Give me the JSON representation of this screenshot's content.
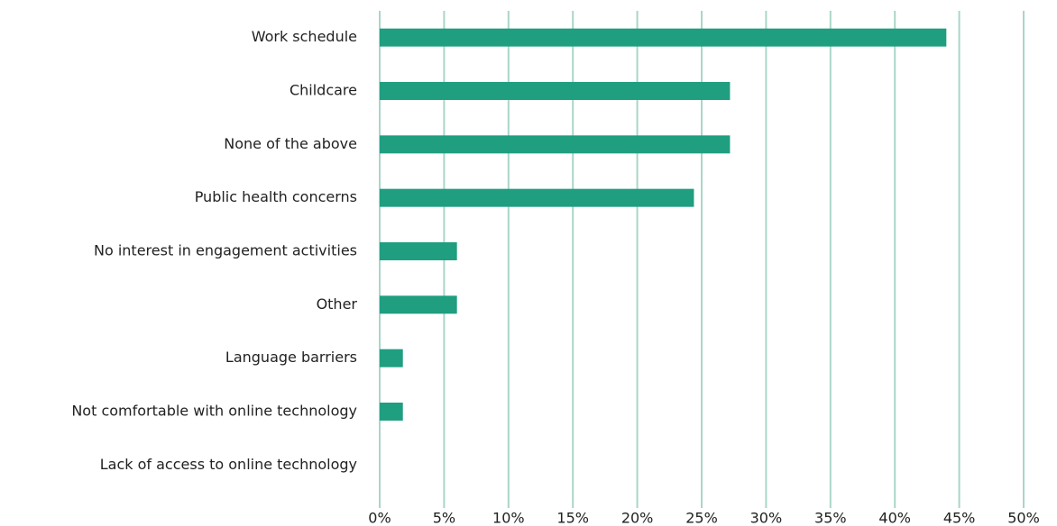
{
  "chart_data": {
    "type": "barh",
    "categories": [
      "Work schedule",
      "Childcare",
      "None of the above",
      "Public health concerns",
      "No interest in engagement activities",
      "Other",
      "Language barriers",
      "Not comfortable with online technology",
      "Lack of access to  online technology"
    ],
    "values": [
      44,
      27.2,
      27.2,
      24.4,
      6,
      6,
      1.8,
      1.8,
      0
    ],
    "color": "#1f9e80",
    "xlim": [
      0,
      50
    ],
    "xticks": [
      {
        "value": 0,
        "label": "0%"
      },
      {
        "value": 5,
        "label": "5%"
      },
      {
        "value": 10,
        "label": "10%"
      },
      {
        "value": 15,
        "label": "15%"
      },
      {
        "value": 20,
        "label": "20%"
      },
      {
        "value": 25,
        "label": "25%"
      },
      {
        "value": 30,
        "label": "30%"
      },
      {
        "value": 35,
        "label": "35%"
      },
      {
        "value": 40,
        "label": "40%"
      },
      {
        "value": 45,
        "label": "45%"
      },
      {
        "value": 50,
        "label": "50%"
      }
    ],
    "grid": true,
    "grid_color": "#a9d6c9"
  }
}
